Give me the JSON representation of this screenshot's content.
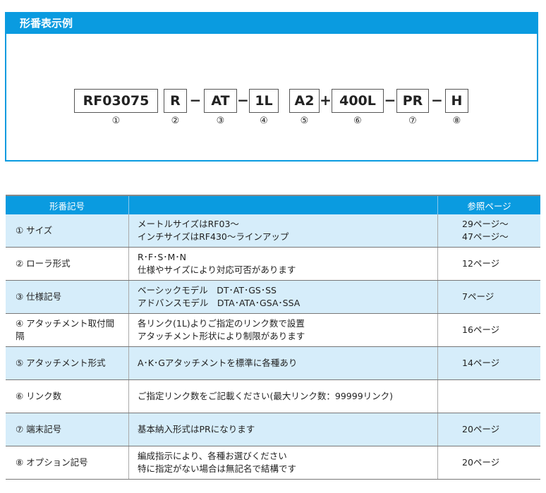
{
  "example": {
    "title": "形番表示例",
    "segments": [
      "RF03075",
      "R",
      "AT",
      "1L",
      "A2",
      "400L",
      "PR",
      "H"
    ],
    "separators": [
      "",
      "−",
      "−",
      "",
      "+",
      "−",
      "−"
    ],
    "numbers": [
      "①",
      "②",
      "③",
      "④",
      "⑤",
      "⑥",
      "⑦",
      "⑧"
    ]
  },
  "table": {
    "headers": [
      "形番記号",
      "",
      "参照ページ"
    ],
    "rows": [
      {
        "label": "① サイズ",
        "desc": [
          "メートルサイズはRF03～",
          "インチサイズはRF430～ラインアップ"
        ],
        "page": [
          "29ページ～",
          "47ページ～"
        ]
      },
      {
        "label": "② ローラ形式",
        "desc": [
          "R･F･S･M･N",
          "仕様やサイズにより対応可否があります"
        ],
        "page": [
          "12ページ"
        ]
      },
      {
        "label": "③ 仕様記号",
        "desc": [
          "ベーシックモデル　DT･AT･GS･SS",
          "アドバンスモデル　DTA･ATA･GSA･SSA"
        ],
        "page": [
          "7ページ"
        ]
      },
      {
        "label": "④ アタッチメント取付間隔",
        "desc": [
          "各リンク(1L)よりご指定のリンク数で設置",
          "アタッチメント形状により制限があります"
        ],
        "page": [
          "16ページ"
        ]
      },
      {
        "label": "⑤ アタッチメント形式",
        "desc": [
          "A･K･Gアタッチメントを標準に各種あり"
        ],
        "page": [
          "14ページ"
        ]
      },
      {
        "label": "⑥ リンク数",
        "desc": [
          "ご指定リンク数をご記載ください(最大リンク数：99999リンク)"
        ],
        "page": []
      },
      {
        "label": "⑦ 端末記号",
        "desc": [
          "基本納入形式はPRになります"
        ],
        "page": [
          "20ページ"
        ]
      },
      {
        "label": "⑧ オプション記号",
        "desc": [
          "編成指示により、各種お選びください",
          "特に指定がない場合は無記名で結構です"
        ],
        "page": [
          "20ページ"
        ]
      }
    ]
  }
}
